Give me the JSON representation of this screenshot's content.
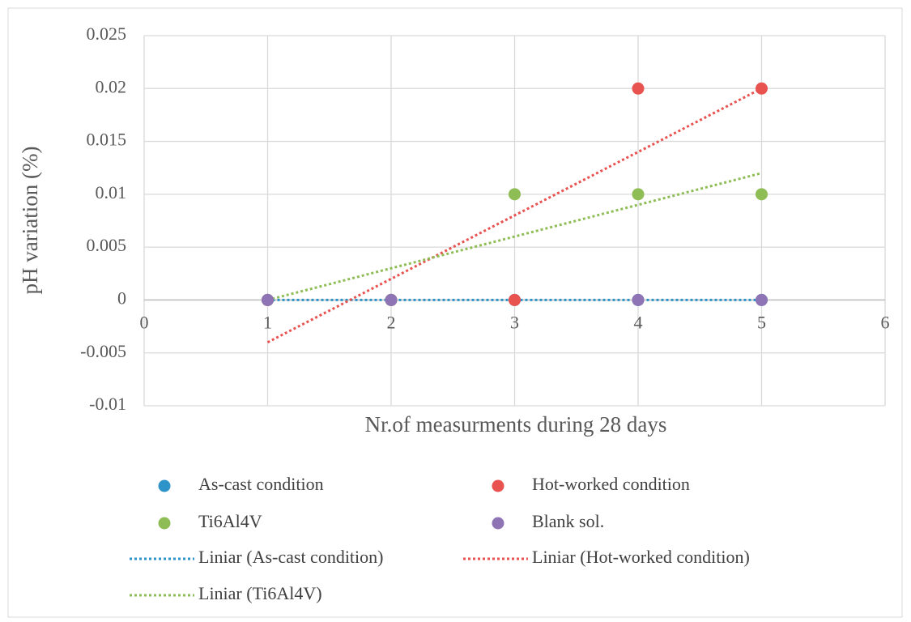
{
  "chart_data": {
    "type": "scatter",
    "x_label": "Nr.of measurments during 28 days",
    "y_label": "pH variation (%)",
    "x": [
      1,
      2,
      3,
      4,
      5
    ],
    "series": [
      {
        "name": "As-cast condition",
        "color": "#2e93c8",
        "values": [
          0,
          0,
          0,
          0,
          0
        ]
      },
      {
        "name": "Hot-worked condition",
        "color": "#e8524f",
        "values": [
          0,
          0,
          0,
          0.02,
          0.02
        ]
      },
      {
        "name": "Ti6Al4V",
        "color": "#8fbd55",
        "values": [
          0,
          0,
          0.01,
          0.01,
          0.01
        ]
      },
      {
        "name": "Blank sol.",
        "color": "#8e73b5",
        "values": [
          0,
          0,
          null,
          0,
          0
        ]
      }
    ],
    "trendlines": [
      {
        "name": "Liniar (As-cast condition)",
        "series": 0
      },
      {
        "name": "Liniar (Hot-worked condition)",
        "series": 1
      },
      {
        "name": "Liniar (Ti6Al4V)",
        "series": 2
      }
    ],
    "xlim": [
      0,
      6
    ],
    "xticks": [
      0,
      1,
      2,
      3,
      4,
      5,
      6
    ],
    "ylim": [
      -0.01,
      0.025
    ],
    "yticks": [
      -0.01,
      -0.005,
      0,
      0.005,
      0.01,
      0.015,
      0.02,
      0.025
    ],
    "grid": true
  }
}
